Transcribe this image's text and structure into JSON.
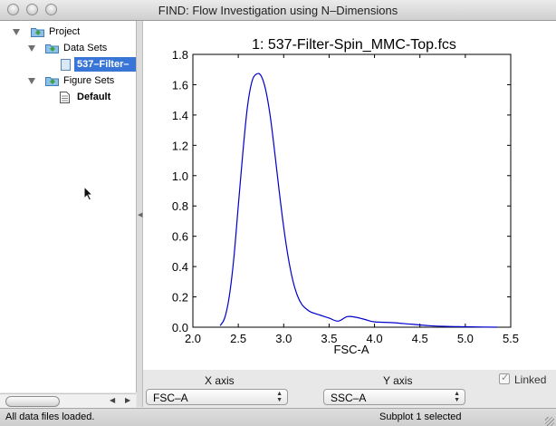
{
  "window": {
    "title": "FIND: Flow Investigation using N–Dimensions"
  },
  "tree": {
    "root": {
      "label": "Project"
    },
    "data_sets": {
      "label": "Data Sets"
    },
    "data_file": {
      "label": "537–Filter–"
    },
    "figure_sets": {
      "label": "Figure Sets"
    },
    "figure_default": {
      "label": "Default"
    }
  },
  "controls": {
    "x_axis_label": "X axis",
    "y_axis_label": "Y axis",
    "x_axis_value": "FSC–A",
    "y_axis_value": "SSC–A",
    "linked_label": "Linked",
    "linked_checked": true
  },
  "status": {
    "left": "All data files loaded.",
    "right": "Subplot 1 selected"
  },
  "chart_data": {
    "type": "line",
    "title": "1: 537-Filter-Spin_MMC-Top.fcs",
    "xlabel": "FSC-A",
    "ylabel": "",
    "xlim": [
      2.0,
      5.5
    ],
    "ylim": [
      0.0,
      1.8
    ],
    "xticks": [
      "2.0",
      "2.5",
      "3.0",
      "3.5",
      "4.0",
      "4.5",
      "5.0",
      "5.5"
    ],
    "yticks": [
      "0.0",
      "0.2",
      "0.4",
      "0.6",
      "0.8",
      "1.0",
      "1.2",
      "1.4",
      "1.6",
      "1.8"
    ],
    "line_color": "#0000cc",
    "grid": false,
    "series": [
      {
        "x": [
          2.3,
          2.35,
          2.4,
          2.45,
          2.5,
          2.55,
          2.6,
          2.65,
          2.7,
          2.75,
          2.8,
          2.85,
          2.9,
          2.95,
          3.0,
          3.05,
          3.1,
          3.15,
          3.2,
          3.25,
          3.3,
          3.4,
          3.5,
          3.6,
          3.7,
          3.8,
          3.9,
          4.0,
          4.2,
          4.4,
          4.6,
          4.8,
          5.0,
          5.2,
          5.35
        ],
        "y": [
          0.01,
          0.06,
          0.2,
          0.45,
          0.8,
          1.15,
          1.45,
          1.62,
          1.67,
          1.66,
          1.57,
          1.4,
          1.16,
          0.9,
          0.66,
          0.46,
          0.31,
          0.21,
          0.15,
          0.12,
          0.1,
          0.08,
          0.06,
          0.04,
          0.07,
          0.065,
          0.05,
          0.035,
          0.03,
          0.02,
          0.01,
          0.005,
          0.003,
          0.001,
          0.0
        ]
      }
    ]
  }
}
